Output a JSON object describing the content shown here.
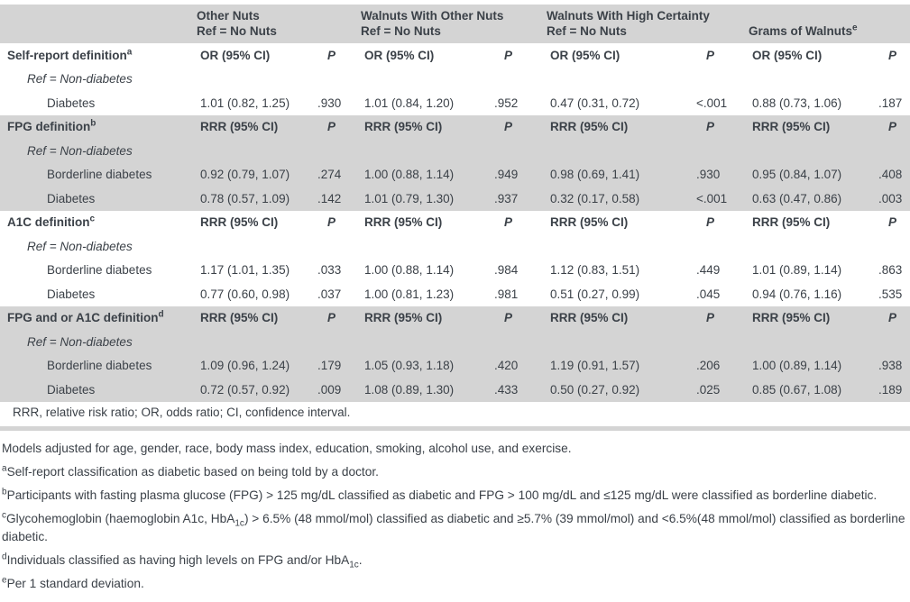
{
  "table": {
    "p_label": "P",
    "column_groups": [
      {
        "title": "Other Nuts",
        "subtitle": "Ref = No Nuts",
        "sup": ""
      },
      {
        "title": "Walnuts With Other Nuts",
        "subtitle": "Ref = No Nuts",
        "sup": ""
      },
      {
        "title": "Walnuts With High Certainty",
        "subtitle": "Ref = No Nuts",
        "sup": ""
      },
      {
        "title": "Grams of Walnuts",
        "subtitle": "",
        "sup": "e"
      }
    ],
    "sections": [
      {
        "name": "Self-report definition",
        "sup": "a",
        "measure": "OR (95% CI)",
        "shaded": false,
        "ref_label": "Ref = Non-diabetes",
        "rows": [
          {
            "label": "Diabetes",
            "cells": [
              {
                "v": "1.01 (0.82, 1.25)",
                "p": ".930"
              },
              {
                "v": "1.01 (0.84, 1.20)",
                "p": ".952"
              },
              {
                "v": "0.47 (0.31, 0.72)",
                "p": "<.001"
              },
              {
                "v": "0.88 (0.73, 1.06)",
                "p": ".187"
              }
            ]
          }
        ]
      },
      {
        "name": "FPG definition",
        "sup": "b",
        "measure": "RRR (95% CI)",
        "shaded": true,
        "ref_label": "Ref = Non-diabetes",
        "rows": [
          {
            "label": "Borderline diabetes",
            "cells": [
              {
                "v": "0.92 (0.79, 1.07)",
                "p": ".274"
              },
              {
                "v": "1.00 (0.88, 1.14)",
                "p": ".949"
              },
              {
                "v": "0.98 (0.69, 1.41)",
                "p": ".930"
              },
              {
                "v": "0.95 (0.84, 1.07)",
                "p": ".408"
              }
            ]
          },
          {
            "label": "Diabetes",
            "cells": [
              {
                "v": "0.78 (0.57, 1.09)",
                "p": ".142"
              },
              {
                "v": "1.01 (0.79, 1.30)",
                "p": ".937"
              },
              {
                "v": "0.32 (0.17, 0.58)",
                "p": "<.001"
              },
              {
                "v": "0.63 (0.47, 0.86)",
                "p": ".003"
              }
            ]
          }
        ]
      },
      {
        "name": "A1C definition",
        "sup": "c",
        "measure": "RRR (95% CI)",
        "shaded": false,
        "ref_label": "Ref = Non-diabetes",
        "rows": [
          {
            "label": "Borderline diabetes",
            "cells": [
              {
                "v": "1.17 (1.01, 1.35)",
                "p": ".033"
              },
              {
                "v": "1.00 (0.88, 1.14)",
                "p": ".984"
              },
              {
                "v": "1.12 (0.83, 1.51)",
                "p": ".449"
              },
              {
                "v": "1.01 (0.89, 1.14)",
                "p": ".863"
              }
            ]
          },
          {
            "label": "Diabetes",
            "cells": [
              {
                "v": "0.77 (0.60, 0.98)",
                "p": ".037"
              },
              {
                "v": "1.00 (0.81, 1.23)",
                "p": ".981"
              },
              {
                "v": "0.51 (0.27, 0.99)",
                "p": ".045"
              },
              {
                "v": "0.94 (0.76, 1.16)",
                "p": ".535"
              }
            ]
          }
        ]
      },
      {
        "name": "FPG and or A1C definition",
        "sup": "d",
        "measure": "RRR (95% CI)",
        "shaded": true,
        "ref_label": "Ref = Non-diabetes",
        "rows": [
          {
            "label": "Borderline diabetes",
            "cells": [
              {
                "v": "1.09 (0.96, 1.24)",
                "p": ".179"
              },
              {
                "v": "1.05 (0.93, 1.18)",
                "p": ".420"
              },
              {
                "v": "1.19 (0.91, 1.57)",
                "p": ".206"
              },
              {
                "v": "1.00 (0.89, 1.14)",
                "p": ".938"
              }
            ]
          },
          {
            "label": "Diabetes",
            "cells": [
              {
                "v": "0.72 (0.57, 0.92)",
                "p": ".009"
              },
              {
                "v": "1.08 (0.89, 1.30)",
                "p": ".433"
              },
              {
                "v": "0.50 (0.27, 0.92)",
                "p": ".025"
              },
              {
                "v": "0.85 (0.67, 1.08)",
                "p": ".189"
              }
            ]
          }
        ]
      }
    ],
    "abbrev_note": "RRR, relative risk ratio; OR, odds ratio; CI, confidence interval."
  },
  "colors": {
    "band_gray": "#d4d4d4",
    "text": "#3b4148",
    "background": "#ffffff"
  },
  "footnotes": [
    {
      "sup": "",
      "segments": [
        {
          "text": "Models adjusted for age, gender, race, body mass index, education, smoking, alcohol use, and exercise."
        }
      ]
    },
    {
      "sup": "a",
      "segments": [
        {
          "text": "Self-report classification as diabetic based on being told by a doctor."
        }
      ]
    },
    {
      "sup": "b",
      "segments": [
        {
          "text": "Participants with fasting plasma glucose (FPG) > 125 mg/dL classified as diabetic and FPG > 100 mg/dL and ≤125 mg/dL were classified as borderline diabetic."
        }
      ]
    },
    {
      "sup": "c",
      "segments": [
        {
          "text": "Glycohemoglobin (haemoglobin A1c, HbA"
        },
        {
          "sub": "1c"
        },
        {
          "text": ") > 6.5% (48 mmol/mol) classified as diabetic and ≥5.7% (39 mmol/mol) and <6.5%(48 mmol/mol) classified as borderline diabetic."
        }
      ]
    },
    {
      "sup": "d",
      "segments": [
        {
          "text": "Individuals classified as having high levels on FPG and/or HbA"
        },
        {
          "sub": "1c"
        },
        {
          "text": "."
        }
      ]
    },
    {
      "sup": "e",
      "segments": [
        {
          "text": "Per 1 standard deviation."
        }
      ]
    }
  ]
}
